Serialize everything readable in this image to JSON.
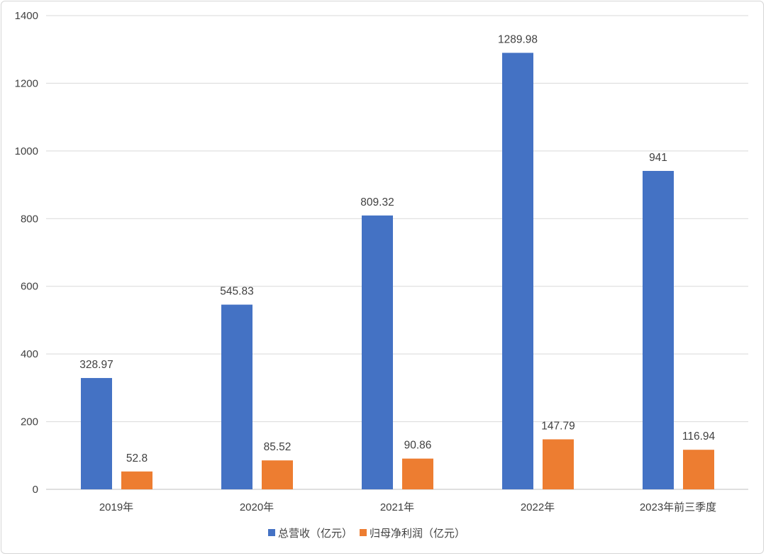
{
  "chart_data": {
    "type": "bar",
    "title": "",
    "xlabel": "",
    "ylabel": "",
    "categories": [
      "2019年",
      "2020年",
      "2021年",
      "2022年",
      "2023年前三季度"
    ],
    "series": [
      {
        "name": "总营收（亿元）",
        "color": "#4472c4",
        "values": [
          328.97,
          545.83,
          809.32,
          1289.98,
          941
        ],
        "labels": [
          "328.97",
          "545.83",
          "809.32",
          "1289.98",
          "941"
        ]
      },
      {
        "name": "归母净利润（亿元）",
        "color": "#ed7d31",
        "values": [
          52.8,
          85.52,
          90.86,
          147.79,
          116.94
        ],
        "labels": [
          "52.8",
          "85.52",
          "90.86",
          "147.79",
          "116.94"
        ]
      }
    ],
    "ylim": [
      0,
      1400
    ],
    "yticks": [
      "0",
      "200",
      "400",
      "600",
      "800",
      "1000",
      "1200",
      "1400"
    ],
    "grid": true,
    "legend": "bottom"
  }
}
